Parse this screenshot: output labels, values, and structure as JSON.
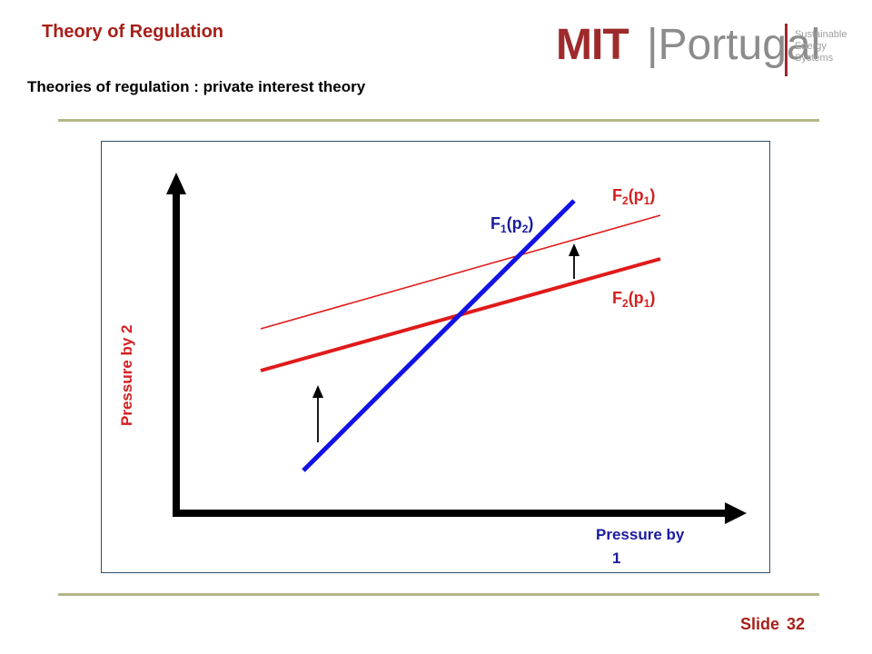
{
  "header": {
    "title": "Theory of Regulation",
    "subtitle": "Theories of regulation : private interest  theory"
  },
  "logo": {
    "mit": "MIT",
    "portugal": "|Portugal",
    "lines": [
      "Sustainable",
      "Energy",
      "Systems"
    ]
  },
  "diagram": {
    "y_axis_label": "Pressure by 2",
    "x_axis_label_line1": "Pressure by",
    "x_axis_label_line2": "1",
    "curves": {
      "f1": {
        "base": "F",
        "sub1": "1",
        "arg": "(p",
        "sub2": "2",
        "close": ")"
      },
      "f2_shifted": {
        "base": "F",
        "sub1": "2",
        "arg": "(p",
        "sub2": "1",
        "close": ")"
      },
      "f2_original": {
        "base": "F",
        "sub1": "2",
        "arg": "(p",
        "sub2": "1",
        "close": ")"
      }
    },
    "colors": {
      "blue_line": "#1212e6",
      "red_line": "#e01a1a",
      "red_label": "#d42020",
      "blue_label": "#1a1aa0",
      "axis": "#000000"
    }
  },
  "footer": {
    "slide_label": "Slide",
    "slide_number": "32"
  }
}
